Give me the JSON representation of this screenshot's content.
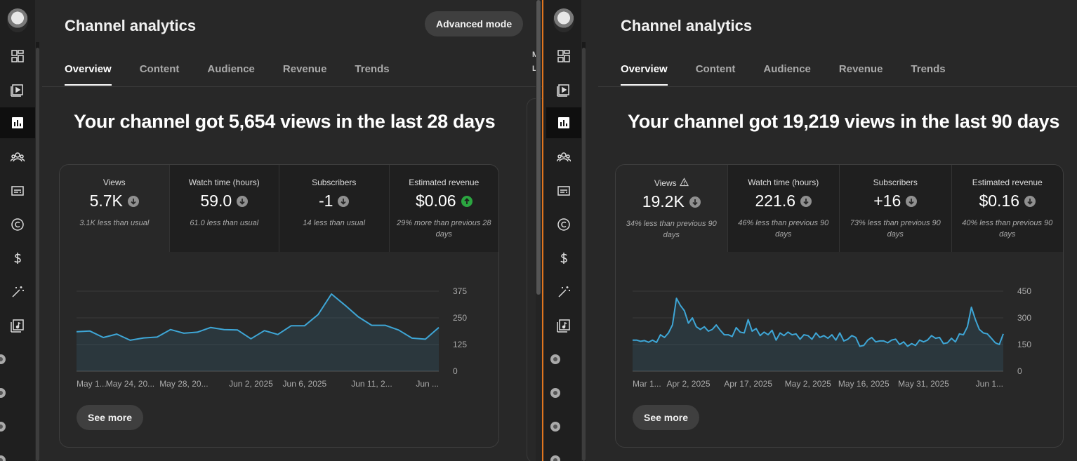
{
  "left": {
    "page_title": "Channel analytics",
    "advanced_mode_label": "Advanced mode",
    "tabs": [
      {
        "label": "Overview"
      },
      {
        "label": "Content"
      },
      {
        "label": "Audience"
      },
      {
        "label": "Revenue"
      },
      {
        "label": "Trends"
      }
    ],
    "edge_text": [
      "M",
      "L"
    ],
    "headline": "Your channel got 5,654 views in the last 28 days",
    "metrics": [
      {
        "label": "Views",
        "value": "5.7K",
        "trend": "down",
        "note": "3.1K less than usual"
      },
      {
        "label": "Watch time (hours)",
        "value": "59.0",
        "trend": "down",
        "note": "61.0 less than usual"
      },
      {
        "label": "Subscribers",
        "value": "-1",
        "trend": "down",
        "note": "14 less than usual"
      },
      {
        "label": "Estimated revenue",
        "value": "$0.06",
        "trend": "up",
        "note": "29% more than previous 28 days"
      }
    ],
    "see_more_label": "See more"
  },
  "right": {
    "page_title": "Channel analytics",
    "tabs": [
      {
        "label": "Overview"
      },
      {
        "label": "Content"
      },
      {
        "label": "Audience"
      },
      {
        "label": "Revenue"
      },
      {
        "label": "Trends"
      }
    ],
    "headline": "Your channel got 19,219 views in the last 90 days",
    "metrics": [
      {
        "label": "Views",
        "value": "19.2K",
        "trend": "down",
        "note": "34% less than previous 90 days",
        "warning": true
      },
      {
        "label": "Watch time (hours)",
        "value": "221.6",
        "trend": "down",
        "note": "46% less than previous 90 days"
      },
      {
        "label": "Subscribers",
        "value": "+16",
        "trend": "down",
        "note": "73% less than previous 90 days"
      },
      {
        "label": "Estimated revenue",
        "value": "$0.16",
        "trend": "down",
        "note": "40% less than previous 90 days"
      }
    ],
    "see_more_label": "See more"
  },
  "chart_data": [
    {
      "type": "area",
      "xlabel": "",
      "ylabel": "",
      "ylim": [
        0,
        375
      ],
      "yticks": [
        0,
        125,
        250,
        375
      ],
      "xtick_labels": [
        "May 1...",
        "May 24, 20...",
        "May 28, 20...",
        "Jun 2, 2025",
        "Jun 6, 2025",
        "Jun 11, 2...",
        "Jun ..."
      ],
      "xtick_index": [
        0,
        4,
        8,
        13,
        17,
        22,
        26
      ],
      "values": [
        185,
        188,
        158,
        174,
        145,
        156,
        160,
        195,
        178,
        183,
        205,
        195,
        193,
        152,
        190,
        172,
        213,
        213,
        265,
        362,
        310,
        255,
        215,
        215,
        193,
        155,
        150,
        205
      ]
    },
    {
      "type": "area",
      "xlabel": "",
      "ylabel": "",
      "ylim": [
        0,
        450
      ],
      "yticks": [
        0,
        150,
        300,
        450
      ],
      "xtick_labels": [
        "Mar 1...",
        "Apr 2, 2025",
        "Apr 17, 2025",
        "May 2, 2025",
        "May 16, 2025",
        "May 31, 2025",
        "Jun 1..."
      ],
      "xtick_index": [
        0,
        14,
        29,
        44,
        58,
        73,
        86
      ],
      "values": [
        175,
        175,
        168,
        172,
        163,
        175,
        162,
        205,
        190,
        215,
        260,
        410,
        370,
        340,
        270,
        300,
        250,
        235,
        250,
        225,
        235,
        260,
        230,
        205,
        205,
        195,
        245,
        220,
        215,
        290,
        225,
        240,
        200,
        220,
        205,
        230,
        175,
        215,
        200,
        220,
        205,
        210,
        180,
        205,
        200,
        180,
        215,
        190,
        200,
        185,
        205,
        175,
        215,
        170,
        180,
        200,
        190,
        140,
        145,
        175,
        190,
        165,
        170,
        170,
        160,
        175,
        180,
        150,
        165,
        140,
        155,
        145,
        175,
        165,
        175,
        200,
        185,
        190,
        155,
        160,
        185,
        165,
        210,
        205,
        250,
        360,
        290,
        235,
        215,
        210,
        185,
        160,
        150,
        210
      ]
    }
  ]
}
